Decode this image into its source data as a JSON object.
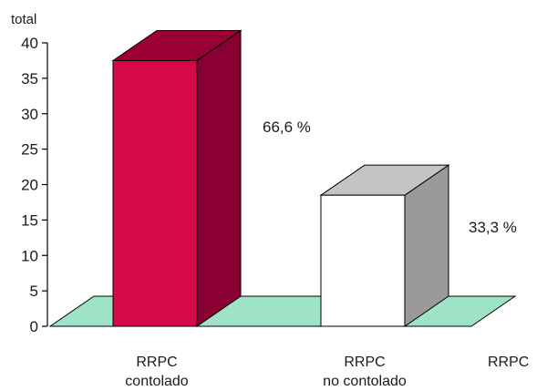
{
  "chart_data": {
    "type": "bar",
    "ylabel": "total",
    "xlabel": "RRPC",
    "categories": [
      [
        "RRPC",
        "contolado"
      ],
      [
        "RRPC",
        "no contolado"
      ]
    ],
    "values": [
      37.5,
      18.5
    ],
    "data_labels": [
      "66,6 %",
      "33,3 %"
    ],
    "yticks": [
      "0",
      "5",
      "10",
      "15",
      "20",
      "25",
      "30",
      "35",
      "40"
    ],
    "ylim": [
      0,
      40
    ],
    "bars": [
      {
        "front": "#d6084a",
        "top": "#9a0036",
        "side": "#8a0032"
      },
      {
        "front": "#ffffff",
        "top": "#c4c4c4",
        "side": "#9a9a9a"
      }
    ],
    "floor_color": "#9fe3c6",
    "grid": false
  }
}
